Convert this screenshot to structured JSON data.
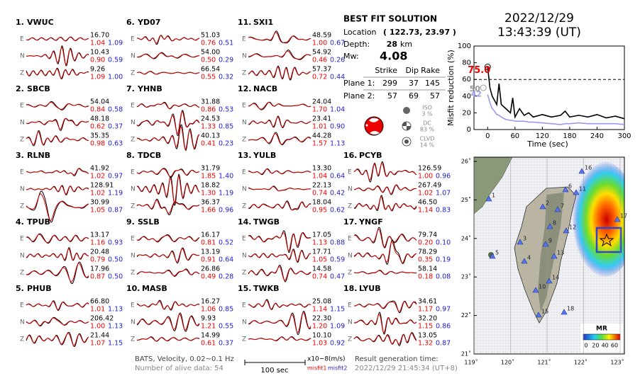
{
  "header": {
    "date": "2022/12/29",
    "time": "13:43:39  (UT)"
  },
  "stations": [
    {
      "number": "1.",
      "name": "VWUC",
      "components": [
        {
          "label": "E",
          "amplitude": "16.70",
          "misfit1": "1.04",
          "misfit2": "1.09"
        },
        {
          "label": "N",
          "amplitude": "10.43",
          "misfit1": "0.90",
          "misfit2": "0.59"
        },
        {
          "label": "Z",
          "amplitude": "9.26",
          "misfit1": "1.09",
          "misfit2": "1.00"
        }
      ]
    },
    {
      "number": "2.",
      "name": "SBCB",
      "components": [
        {
          "label": "E",
          "amplitude": "54.04",
          "misfit1": "0.84",
          "misfit2": "0.58"
        },
        {
          "label": "N",
          "amplitude": "48.18",
          "misfit1": "0.62",
          "misfit2": "0.37"
        },
        {
          "label": "Z",
          "amplitude": "35.35",
          "misfit1": "0.98",
          "misfit2": "0.63"
        }
      ]
    },
    {
      "number": "3.",
      "name": "RLNB",
      "components": [
        {
          "label": "E",
          "amplitude": "41.92",
          "misfit1": "1.02",
          "misfit2": "0.97"
        },
        {
          "label": "N",
          "amplitude": "128.91",
          "misfit1": "1.02",
          "misfit2": "1.19"
        },
        {
          "label": "Z",
          "amplitude": "30.99",
          "misfit1": "1.05",
          "misfit2": "0.87"
        }
      ]
    },
    {
      "number": "4.",
      "name": "TPUB",
      "components": [
        {
          "label": "E",
          "amplitude": "13.17",
          "misfit1": "1.16",
          "misfit2": "0.93"
        },
        {
          "label": "N",
          "amplitude": "20.48",
          "misfit1": "0.79",
          "misfit2": "0.50"
        },
        {
          "label": "Z",
          "amplitude": "17.96",
          "misfit1": "0.87",
          "misfit2": "0.50"
        }
      ]
    },
    {
      "number": "5.",
      "name": "PHUB",
      "components": [
        {
          "label": "E",
          "amplitude": "66.80",
          "misfit1": "1.01",
          "misfit2": "1.13"
        },
        {
          "label": "N",
          "amplitude": "206.42",
          "misfit1": "1.00",
          "misfit2": "1.13"
        },
        {
          "label": "Z",
          "amplitude": "21.44",
          "misfit1": "1.07",
          "misfit2": "1.15"
        }
      ]
    },
    {
      "number": "6.",
      "name": "YD07",
      "components": [
        {
          "label": "E",
          "amplitude": "51.03",
          "misfit1": "0.76",
          "misfit2": "0.51"
        },
        {
          "label": "N",
          "amplitude": "54.00",
          "misfit1": "0.50",
          "misfit2": "0.29"
        },
        {
          "label": "Z",
          "amplitude": "66.54",
          "misfit1": "0.55",
          "misfit2": "0.32"
        }
      ]
    },
    {
      "number": "7.",
      "name": "YHNB",
      "components": [
        {
          "label": "E",
          "amplitude": "31.88",
          "misfit1": "0.86",
          "misfit2": "0.53"
        },
        {
          "label": "N",
          "amplitude": "24.53",
          "misfit1": "1.33",
          "misfit2": "0.85"
        },
        {
          "label": "Z",
          "amplitude": "40.13",
          "misfit1": "0.41",
          "misfit2": "0.23"
        }
      ]
    },
    {
      "number": "8.",
      "name": "TDCB",
      "components": [
        {
          "label": "E",
          "amplitude": "31.79",
          "misfit1": "1.85",
          "misfit2": "1.40"
        },
        {
          "label": "N",
          "amplitude": "18.82",
          "misfit1": "1.30",
          "misfit2": "1.19"
        },
        {
          "label": "Z",
          "amplitude": "36.37",
          "misfit1": "1.66",
          "misfit2": "0.96"
        }
      ]
    },
    {
      "number": "9.",
      "name": "SSLB",
      "components": [
        {
          "label": "E",
          "amplitude": "16.17",
          "misfit1": "0.81",
          "misfit2": "0.52"
        },
        {
          "label": "N",
          "amplitude": "13.19",
          "misfit1": "0.91",
          "misfit2": "0.64"
        },
        {
          "label": "Z",
          "amplitude": "26.86",
          "misfit1": "0.49",
          "misfit2": "0.28"
        }
      ]
    },
    {
      "number": "10.",
      "name": "MASB",
      "components": [
        {
          "label": "E",
          "amplitude": "16.27",
          "misfit1": "1.06",
          "misfit2": "0.85"
        },
        {
          "label": "N",
          "amplitude": "9.93",
          "misfit1": "1.21",
          "misfit2": "0.55"
        },
        {
          "label": "Z",
          "amplitude": "14.99",
          "misfit1": "0.61",
          "misfit2": "0.37"
        }
      ]
    },
    {
      "number": "11.",
      "name": "SXI1",
      "components": [
        {
          "label": "E",
          "amplitude": "48.59",
          "misfit1": "1.00",
          "misfit2": "0.67"
        },
        {
          "label": "N",
          "amplitude": "54.92",
          "misfit1": "0.46",
          "misfit2": "0.26"
        },
        {
          "label": "Z",
          "amplitude": "57.37",
          "misfit1": "0.72",
          "misfit2": "0.44"
        }
      ]
    },
    {
      "number": "12.",
      "name": "NACB",
      "components": [
        {
          "label": "E",
          "amplitude": "24.04",
          "misfit1": "1.70",
          "misfit2": "1.04"
        },
        {
          "label": "N",
          "amplitude": "23.41",
          "misfit1": "1.01",
          "misfit2": "0.90"
        },
        {
          "label": "Z",
          "amplitude": "44.28",
          "misfit1": "1.57",
          "misfit2": "1.13"
        }
      ]
    },
    {
      "number": "13.",
      "name": "YULB",
      "components": [
        {
          "label": "E",
          "amplitude": "13.30",
          "misfit1": "1.04",
          "misfit2": "0.64"
        },
        {
          "label": "N",
          "amplitude": "22.13",
          "misfit1": "0.74",
          "misfit2": "0.42"
        },
        {
          "label": "Z",
          "amplitude": "18.04",
          "misfit1": "0.95",
          "misfit2": "0.62"
        }
      ]
    },
    {
      "number": "14.",
      "name": "TWGB",
      "components": [
        {
          "label": "E",
          "amplitude": "17.05",
          "misfit1": "1.13",
          "misfit2": "0.88"
        },
        {
          "label": "N",
          "amplitude": "17.71",
          "misfit1": "1.05",
          "misfit2": "0.59"
        },
        {
          "label": "Z",
          "amplitude": "14.58",
          "misfit1": "0.74",
          "misfit2": "0.47"
        }
      ]
    },
    {
      "number": "15.",
      "name": "TWKB",
      "components": [
        {
          "label": "E",
          "amplitude": "25.08",
          "misfit1": "1.14",
          "misfit2": "1.15"
        },
        {
          "label": "N",
          "amplitude": "22.30",
          "misfit1": "1.20",
          "misfit2": "1.09"
        },
        {
          "label": "Z",
          "amplitude": "10.10",
          "misfit1": "1.03",
          "misfit2": "0.92"
        }
      ]
    },
    {
      "number": "16.",
      "name": "PCYB",
      "components": [
        {
          "label": "E",
          "amplitude": "126.59",
          "misfit1": "1.00",
          "misfit2": "0.96"
        },
        {
          "label": "N",
          "amplitude": "267.49",
          "misfit1": "1.02",
          "misfit2": "1.07"
        },
        {
          "label": "Z",
          "amplitude": "46.50",
          "misfit1": "1.14",
          "misfit2": "0.83"
        }
      ]
    },
    {
      "number": "17.",
      "name": "YNGF",
      "components": [
        {
          "label": "E",
          "amplitude": "79.74",
          "misfit1": "0.20",
          "misfit2": "0.10"
        },
        {
          "label": "N",
          "amplitude": "78.29",
          "misfit1": "0.35",
          "misfit2": "0.19"
        },
        {
          "label": "Z",
          "amplitude": "58.14",
          "misfit1": "0.18",
          "misfit2": "0.08"
        }
      ]
    },
    {
      "number": "18.",
      "name": "LYUB",
      "components": [
        {
          "label": "E",
          "amplitude": "34.61",
          "misfit1": "1.17",
          "misfit2": "0.97"
        },
        {
          "label": "N",
          "amplitude": "32.20",
          "misfit1": "1.15",
          "misfit2": "0.86"
        },
        {
          "label": "Z",
          "amplitude": "13.05",
          "misfit1": "1.32",
          "misfit2": "0.87"
        }
      ]
    }
  ],
  "solution": {
    "title": "BEST FIT SOLUTION",
    "location_label": "Location",
    "location": "( 122.73, 23.97 )",
    "depth_label": "Depth:",
    "depth": "28",
    "depth_unit": "km",
    "mw_label": "Mw:",
    "mw": "4.08",
    "columns": [
      "Strike",
      "Dip",
      "Rake"
    ],
    "planes": [
      {
        "label": "Plane 1:",
        "values": [
          "299",
          "37",
          "145"
        ]
      },
      {
        "label": "Plane 2:",
        "values": [
          "57",
          "69",
          "57"
        ]
      }
    ],
    "decomposition": [
      {
        "label": "ISO",
        "percent": "3 %"
      },
      {
        "label": "DC",
        "percent": "83 %"
      },
      {
        "label": "CLVD",
        "percent": "14 %"
      }
    ]
  },
  "footer": {
    "info": "BATS, Velocity, 0.02~0.1 Hz",
    "alive": "Number of alive data: 54",
    "scale_label": "100 sec",
    "unit": "x10−8(m/s)",
    "misfit1": "misfit1",
    "misfit2": "misfit2",
    "result_label": "Result generation time:",
    "result_time": "2022/12/29 21:45:34 (UT+8)"
  },
  "chart_data": {
    "type": "line",
    "xlabel": "Time (sec)",
    "ylabel": "Misfit reduction (%)",
    "x": [
      0,
      5,
      10,
      15,
      20,
      25,
      30,
      40,
      50,
      55,
      60,
      70,
      80,
      90,
      100,
      120,
      140,
      160,
      170,
      180,
      200,
      220,
      240,
      260,
      280,
      300
    ],
    "series": [
      {
        "color": "#000000",
        "values": [
          75,
          50,
          40,
          35,
          30,
          55,
          30,
          25,
          20,
          38,
          15,
          25,
          17,
          20,
          15,
          18,
          15,
          17,
          22,
          15,
          17,
          15,
          18,
          14,
          16,
          13
        ]
      },
      {
        "color": "#9999ee",
        "values": [
          42,
          32,
          25,
          22,
          18,
          17,
          15,
          12,
          11,
          11,
          10,
          10,
          10,
          9,
          9,
          8,
          7,
          6,
          7,
          7,
          8,
          7,
          7,
          7,
          7,
          6
        ]
      }
    ],
    "reference_line": 60,
    "annotations": [
      {
        "text": "75.0",
        "color": "#ee0000"
      },
      {
        "text": "50",
        "color": "#999999"
      },
      {
        "text": "42",
        "color": "#9999ee"
      }
    ],
    "xlim": [
      -30,
      300
    ],
    "xticks": [
      0,
      60,
      120,
      180,
      240,
      300
    ],
    "ylim": [
      0,
      100
    ],
    "yticks": [
      0,
      20,
      40,
      60,
      80,
      100
    ]
  },
  "map": {
    "lon_ticks": [
      {
        "value": 119,
        "label": "119˚"
      },
      {
        "value": 120,
        "label": "120˚"
      },
      {
        "value": 121,
        "label": "121˚"
      },
      {
        "value": 122,
        "label": "122˚"
      },
      {
        "value": 123,
        "label": "123˚"
      }
    ],
    "lat_ticks": [
      {
        "value": 26,
        "label": "26˚"
      },
      {
        "value": 25,
        "label": "25˚"
      },
      {
        "value": 24,
        "label": "24˚"
      },
      {
        "value": 23,
        "label": "23˚"
      },
      {
        "value": 22,
        "label": "22˚"
      },
      {
        "value": 21,
        "label": "21˚"
      }
    ],
    "station_labels": [
      1,
      2,
      3,
      4,
      5,
      6,
      7,
      8,
      9,
      10,
      11,
      12,
      13,
      14,
      15,
      16,
      17,
      18
    ],
    "colorbar": {
      "title": "MR",
      "ticks": [
        0,
        20,
        40,
        60
      ],
      "lim": [
        0,
        60
      ]
    }
  }
}
